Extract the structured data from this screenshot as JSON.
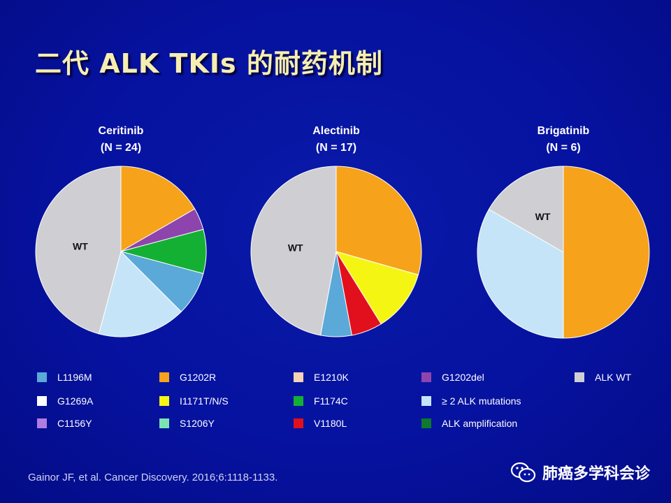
{
  "slide": {
    "title": "二代 ALK TKIs 的耐药机制",
    "citation": "Gainor JF, et al. Cancer Discovery. 2016;6:1118-1133.",
    "watermark": "肺癌多学科会诊"
  },
  "colors": {
    "background": "#0612a0",
    "L1196M": "#5aa9d8",
    "G1202R": "#f6a21b",
    "E1210K": "#f6d3b4",
    "G1202del": "#8e44ad",
    "ALK WT": "#cfcfd3",
    "G1269A": "#ffffff",
    "I1171T/N/S": "#f5f514",
    "F1174C": "#14b034",
    "≥ 2 ALK mutations": "#c6e4f7",
    "C1156Y": "#b07ce0",
    "S1206Y": "#7be3b2",
    "V1180L": "#e2101c",
    "ALK amplification": "#0e7a2e"
  },
  "legend": [
    [
      {
        "label": "L1196M",
        "color": "#5aa9d8"
      },
      {
        "label": "G1202R",
        "color": "#f6a21b"
      },
      {
        "label": "E1210K",
        "color": "#f6d3b4"
      },
      {
        "label": "G1202del",
        "color": "#8e44ad"
      },
      {
        "label": "ALK WT",
        "color": "#cfcfd3"
      }
    ],
    [
      {
        "label": "G1269A",
        "color": "#ffffff"
      },
      {
        "label": "I1171T/N/S",
        "color": "#f5f514"
      },
      {
        "label": "F1174C",
        "color": "#14b034"
      },
      {
        "label": "≥ 2 ALK mutations",
        "color": "#c6e4f7"
      }
    ],
    [
      {
        "label": "C1156Y",
        "color": "#b07ce0"
      },
      {
        "label": "S1206Y",
        "color": "#7be3b2"
      },
      {
        "label": "V1180L",
        "color": "#e2101c"
      },
      {
        "label": "ALK amplification",
        "color": "#0e7a2e"
      }
    ]
  ],
  "chart_data": [
    {
      "type": "pie",
      "title": "Ceritinib",
      "subtitle": "(N = 24)",
      "slices": [
        {
          "name": "G1202R",
          "value": 4,
          "color": "#f6a21b"
        },
        {
          "name": "G1202del",
          "value": 1,
          "color": "#8e44ad"
        },
        {
          "name": "F1174C",
          "value": 2,
          "color": "#14b034"
        },
        {
          "name": "L1196M",
          "value": 2,
          "color": "#5aa9d8"
        },
        {
          "name": "≥ 2 ALK mutations",
          "value": 4,
          "color": "#c6e4f7"
        },
        {
          "name": "ALK WT",
          "value": 11,
          "color": "#cfcfd3",
          "label": "WT"
        }
      ]
    },
    {
      "type": "pie",
      "title": "Alectinib",
      "subtitle": "(N = 17)",
      "slices": [
        {
          "name": "G1202R",
          "value": 5,
          "color": "#f6a21b"
        },
        {
          "name": "I1171T/N/S",
          "value": 2,
          "color": "#f5f514"
        },
        {
          "name": "V1180L",
          "value": 1,
          "color": "#e2101c"
        },
        {
          "name": "L1196M",
          "value": 1,
          "color": "#5aa9d8"
        },
        {
          "name": "ALK WT",
          "value": 8,
          "color": "#cfcfd3",
          "label": "WT"
        }
      ]
    },
    {
      "type": "pie",
      "title": "Brigatinib",
      "subtitle": "(N = 6)",
      "slices": [
        {
          "name": "G1202R",
          "value": 3,
          "color": "#f6a21b"
        },
        {
          "name": "≥ 2 ALK mutations",
          "value": 2,
          "color": "#c6e4f7"
        },
        {
          "name": "ALK WT",
          "value": 1,
          "color": "#cfcfd3",
          "label": "WT"
        }
      ]
    }
  ]
}
